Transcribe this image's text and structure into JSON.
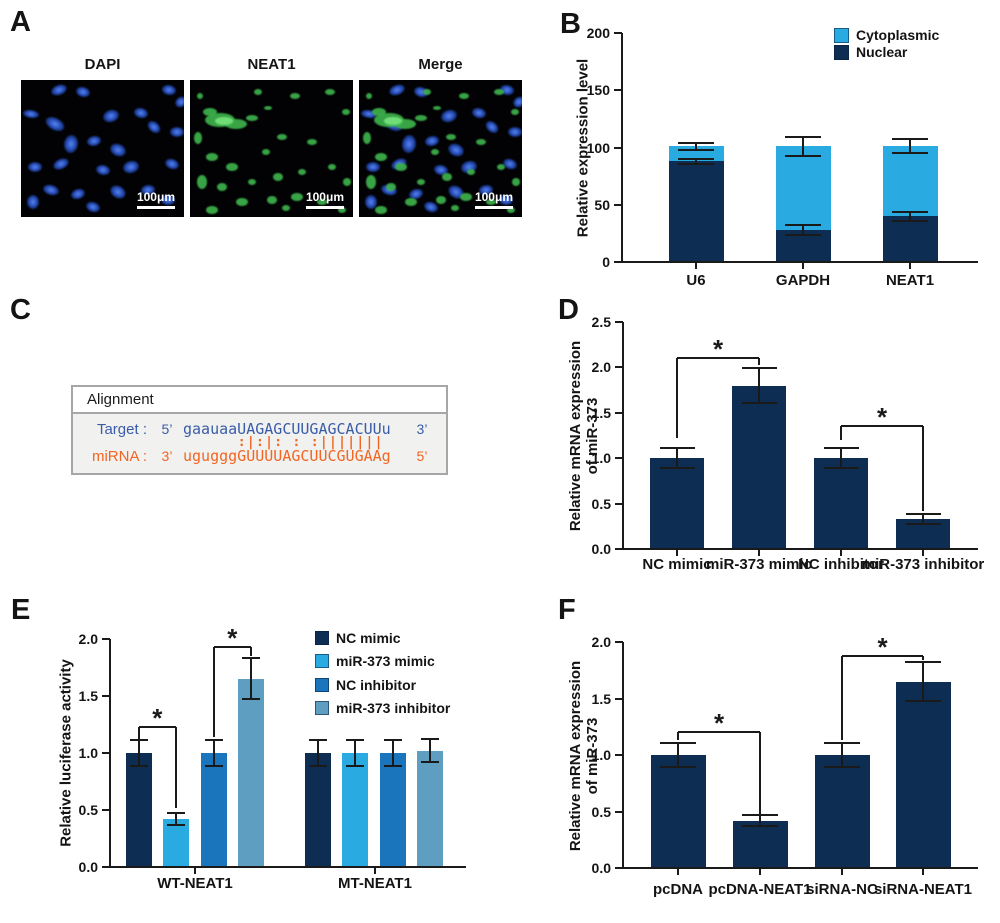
{
  "colors": {
    "navy": "#0E2D52",
    "cyan": "#29ABE2",
    "medium_blue": "#1B75BC",
    "steel_blue": "#5E9FC1",
    "orange": "#F26522",
    "sequence_blue": "#3A5CA8"
  },
  "panels": {
    "A": {
      "label": "A",
      "images": [
        {
          "title": "DAPI",
          "scale": "100μm"
        },
        {
          "title": "NEAT1",
          "scale": "100μm"
        },
        {
          "title": "Merge",
          "scale": "100μm"
        }
      ]
    },
    "B": {
      "label": "B"
    },
    "C": {
      "label": "C",
      "box_title": "Alignment",
      "target": {
        "name": "Target :",
        "prime_left": "5’",
        "seq": "gaauaaUAGAGCUUGAGCACUUu",
        "prime_right": "3’"
      },
      "pairing": "      :|:|: : :||||||| ",
      "mirna": {
        "name": "miRNA :",
        "prime_left": "3’",
        "seq": "ugugggGUUUUAGCUUCGUGAAg",
        "prime_right": "5’"
      }
    },
    "D": {
      "label": "D"
    },
    "E": {
      "label": "E"
    },
    "F": {
      "label": "F"
    }
  },
  "chart_data": [
    {
      "panel": "B",
      "type": "stacked-bar",
      "title": "",
      "ylabel": "Relative expression level",
      "xlabel": "",
      "ylim": [
        0,
        200
      ],
      "yticks": [
        0,
        50,
        100,
        150,
        200
      ],
      "ytick_labels": [
        "0",
        "50",
        "100",
        "150",
        "200"
      ],
      "categories": [
        "U6",
        "GAPDH",
        "NEAT1"
      ],
      "series": [
        {
          "name": "Nuclear",
          "color": "#0E2D52",
          "values": [
            88,
            28,
            40
          ],
          "errors": [
            2,
            4,
            4
          ]
        },
        {
          "name": "Cytoplasmic",
          "color": "#29ABE2",
          "values": [
            13,
            73,
            61
          ],
          "errors": [
            3,
            8,
            6
          ]
        }
      ],
      "legend": [
        {
          "label": "Cytoplasmic",
          "color": "#29ABE2"
        },
        {
          "label": "Nuclear",
          "color": "#0E2D52"
        }
      ],
      "legend_position": "top-right",
      "grid": false
    },
    {
      "panel": "D",
      "type": "bar",
      "title": "",
      "ylabel": "Relative mRNA expression\nof miR-373",
      "xlabel": "",
      "ylim": [
        0,
        2.5
      ],
      "yticks": [
        0,
        0.5,
        1,
        1.5,
        2,
        2.5
      ],
      "ytick_labels": [
        "0.0",
        "0.5",
        "1.0",
        "1.5",
        "2.0",
        "2.5"
      ],
      "categories": [
        "NC mimic",
        "miR-373 mimic",
        "NC inhibitor",
        "miR-373 inhibitor"
      ],
      "bar_color": "#0E2D52",
      "values": [
        1.0,
        1.8,
        1.0,
        0.33
      ],
      "errors": [
        0.11,
        0.19,
        0.11,
        0.05
      ],
      "significance": [
        {
          "from": 0,
          "to": 1,
          "y": 2.1,
          "drop_from": 1.22,
          "drop_to": 2.03,
          "label": "*"
        },
        {
          "from": 2,
          "to": 3,
          "y": 1.35,
          "drop_from": 1.2,
          "drop_to": 0.42,
          "label": "*"
        }
      ],
      "grid": false
    },
    {
      "panel": "E",
      "type": "grouped-bar",
      "title": "",
      "ylabel": "Relative luciferase activity",
      "xlabel": "",
      "ylim": [
        0,
        2.0
      ],
      "yticks": [
        0,
        0.5,
        1,
        1.5,
        2
      ],
      "ytick_labels": [
        "0.0",
        "0.5",
        "1.0",
        "1.5",
        "2.0"
      ],
      "categories": [
        "WT-NEAT1",
        "MT-NEAT1"
      ],
      "series": [
        {
          "name": "NC mimic",
          "color": "#0E2D52",
          "values": [
            1.0,
            1.0
          ],
          "errors": [
            0.11,
            0.11
          ]
        },
        {
          "name": "miR-373 mimic",
          "color": "#29ABE2",
          "values": [
            0.42,
            1.0
          ],
          "errors": [
            0.05,
            0.11
          ]
        },
        {
          "name": "NC inhibitor",
          "color": "#1B75BC",
          "values": [
            1.0,
            1.0
          ],
          "errors": [
            0.11,
            0.11
          ]
        },
        {
          "name": "miR-373 inhibitor",
          "color": "#5E9FC1",
          "values": [
            1.65,
            1.02
          ],
          "errors": [
            0.18,
            0.1
          ]
        }
      ],
      "legend": [
        {
          "label": "NC mimic",
          "color": "#0E2D52"
        },
        {
          "label": "miR-373 mimic",
          "color": "#29ABE2"
        },
        {
          "label": "NC inhibitor",
          "color": "#1B75BC"
        },
        {
          "label": "miR-373 inhibitor",
          "color": "#5E9FC1"
        }
      ],
      "legend_position": "top-right",
      "significance": [
        {
          "group": 0,
          "from": 0,
          "to": 1,
          "y": 1.23,
          "drop_from": 1.12,
          "drop_to": 0.52,
          "label": "*"
        },
        {
          "group": 0,
          "from": 2,
          "to": 3,
          "y": 1.93,
          "drop_from": 1.14,
          "drop_to": 1.85,
          "label": "*"
        }
      ],
      "grid": false
    },
    {
      "panel": "F",
      "type": "bar",
      "title": "",
      "ylabel": "Relative mRNA expression\nof miR-373",
      "xlabel": "",
      "ylim": [
        0,
        2.0
      ],
      "yticks": [
        0,
        0.5,
        1,
        1.5,
        2
      ],
      "ytick_labels": [
        "0.0",
        "0.5",
        "1.0",
        "1.5",
        "2.0"
      ],
      "categories": [
        "pcDNA",
        "pcDNA-NEAT1",
        "siRNA-NC",
        "siRNA-NEAT1"
      ],
      "bar_color": "#0E2D52",
      "values": [
        1.0,
        0.42,
        1.0,
        1.65
      ],
      "errors": [
        0.11,
        0.05,
        0.11,
        0.17
      ],
      "significance": [
        {
          "from": 0,
          "to": 1,
          "y": 1.2,
          "drop_from": 1.13,
          "drop_to": 0.48,
          "label": "*"
        },
        {
          "from": 2,
          "to": 3,
          "y": 1.88,
          "drop_from": 1.13,
          "drop_to": 1.84,
          "label": "*"
        }
      ],
      "grid": false
    }
  ]
}
